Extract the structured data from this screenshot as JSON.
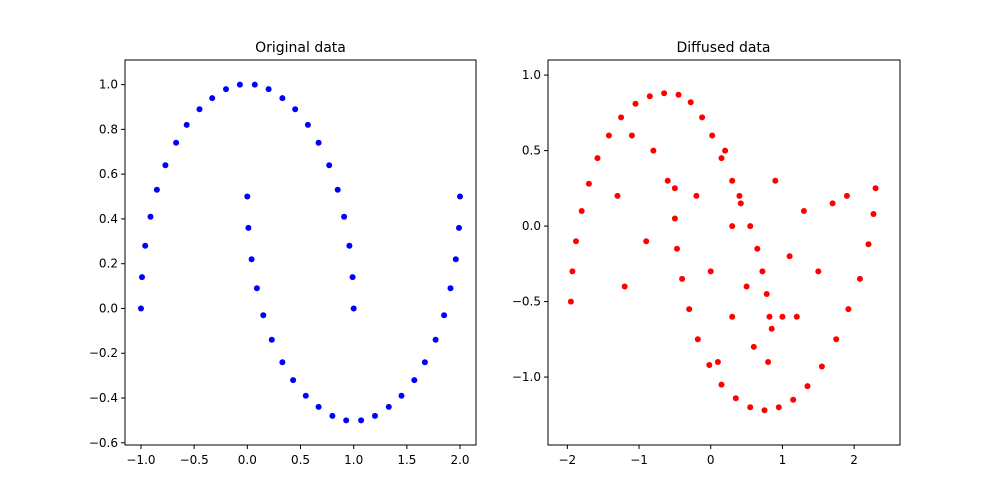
{
  "chart_data": [
    {
      "type": "scatter",
      "title": "Original data",
      "xlabel": "",
      "ylabel": "",
      "xlim": [
        -1.15,
        2.15
      ],
      "ylim": [
        -0.61,
        1.11
      ],
      "xticks": [
        -1.0,
        -0.5,
        0.0,
        0.5,
        1.0,
        1.5,
        2.0
      ],
      "xtick_labels": [
        "−1.0",
        "−0.5",
        "0.0",
        "0.5",
        "1.0",
        "1.5",
        "2.0"
      ],
      "yticks": [
        -0.6,
        -0.4,
        -0.2,
        0.0,
        0.2,
        0.4,
        0.6,
        0.8,
        1.0
      ],
      "ytick_labels": [
        "−0.6",
        "−0.4",
        "−0.2",
        "0.0",
        "0.2",
        "0.4",
        "0.6",
        "0.8",
        "1.0"
      ],
      "grid": false,
      "color": "#0000ff",
      "series": [
        {
          "points": [
            [
              -1.0,
              0.0
            ],
            [
              -0.99,
              0.14
            ],
            [
              -0.96,
              0.28
            ],
            [
              -0.91,
              0.41
            ],
            [
              -0.85,
              0.53
            ],
            [
              -0.77,
              0.64
            ],
            [
              -0.67,
              0.74
            ],
            [
              -0.57,
              0.82
            ],
            [
              -0.45,
              0.89
            ],
            [
              -0.33,
              0.94
            ],
            [
              -0.2,
              0.98
            ],
            [
              -0.07,
              1.0
            ],
            [
              0.07,
              1.0
            ],
            [
              0.2,
              0.98
            ],
            [
              0.33,
              0.94
            ],
            [
              0.45,
              0.89
            ],
            [
              0.57,
              0.82
            ],
            [
              0.67,
              0.74
            ],
            [
              0.77,
              0.64
            ],
            [
              0.85,
              0.53
            ],
            [
              0.91,
              0.41
            ],
            [
              0.96,
              0.28
            ],
            [
              0.99,
              0.14
            ],
            [
              1.0,
              0.0
            ]
          ]
        },
        {
          "points": [
            [
              0.0,
              0.5
            ],
            [
              0.01,
              0.36
            ],
            [
              0.04,
              0.22
            ],
            [
              0.09,
              0.09
            ],
            [
              0.15,
              -0.03
            ],
            [
              0.23,
              -0.14
            ],
            [
              0.33,
              -0.24
            ],
            [
              0.43,
              -0.32
            ],
            [
              0.55,
              -0.39
            ],
            [
              0.67,
              -0.44
            ],
            [
              0.8,
              -0.48
            ],
            [
              0.93,
              -0.5
            ],
            [
              1.07,
              -0.5
            ],
            [
              1.2,
              -0.48
            ],
            [
              1.33,
              -0.44
            ],
            [
              1.45,
              -0.39
            ],
            [
              1.57,
              -0.32
            ],
            [
              1.67,
              -0.24
            ],
            [
              1.77,
              -0.14
            ],
            [
              1.85,
              -0.03
            ],
            [
              1.91,
              0.09
            ],
            [
              1.96,
              0.22
            ],
            [
              1.99,
              0.36
            ],
            [
              2.0,
              0.5
            ]
          ]
        }
      ]
    },
    {
      "type": "scatter",
      "title": "Diffused data",
      "xlabel": "",
      "ylabel": "",
      "xlim": [
        -2.27,
        2.64
      ],
      "ylim": [
        -1.45,
        1.1
      ],
      "xticks": [
        -2,
        -1,
        0,
        1,
        2
      ],
      "xtick_labels": [
        "−2",
        "−1",
        "0",
        "1",
        "2"
      ],
      "yticks": [
        -1.0,
        -0.5,
        0.0,
        0.5,
        1.0
      ],
      "ytick_labels": [
        "−1.0",
        "−0.5",
        "0.0",
        "0.5",
        "1.0"
      ],
      "grid": false,
      "color": "#ff0000",
      "series": [
        {
          "points": [
            [
              -1.95,
              -0.5
            ],
            [
              -1.93,
              -0.3
            ],
            [
              -1.88,
              -0.1
            ],
            [
              -1.8,
              0.1
            ],
            [
              -1.7,
              0.28
            ],
            [
              -1.58,
              0.45
            ],
            [
              -1.42,
              0.6
            ],
            [
              -1.25,
              0.72
            ],
            [
              -1.05,
              0.81
            ],
            [
              -0.85,
              0.86
            ],
            [
              -0.65,
              0.88
            ],
            [
              -0.45,
              0.87
            ],
            [
              -0.28,
              0.82
            ],
            [
              -0.12,
              0.72
            ],
            [
              0.02,
              0.6
            ],
            [
              0.15,
              0.45
            ],
            [
              0.3,
              0.3
            ],
            [
              0.42,
              0.15
            ],
            [
              0.55,
              0.0
            ],
            [
              0.65,
              -0.15
            ],
            [
              0.72,
              -0.3
            ],
            [
              0.78,
              -0.45
            ],
            [
              0.82,
              -0.6
            ],
            [
              0.85,
              -0.68
            ]
          ]
        },
        {
          "points": [
            [
              -0.5,
              0.25
            ],
            [
              -0.5,
              0.05
            ],
            [
              -0.47,
              -0.15
            ],
            [
              -0.4,
              -0.35
            ],
            [
              -0.3,
              -0.55
            ],
            [
              -0.18,
              -0.75
            ],
            [
              -0.02,
              -0.92
            ],
            [
              0.15,
              -1.05
            ],
            [
              0.35,
              -1.14
            ],
            [
              0.55,
              -1.2
            ],
            [
              0.75,
              -1.22
            ],
            [
              0.95,
              -1.2
            ],
            [
              1.15,
              -1.15
            ],
            [
              1.35,
              -1.06
            ],
            [
              1.55,
              -0.93
            ],
            [
              1.75,
              -0.75
            ],
            [
              1.92,
              -0.55
            ],
            [
              2.08,
              -0.35
            ],
            [
              2.2,
              -0.12
            ],
            [
              2.27,
              0.08
            ],
            [
              2.3,
              0.25
            ]
          ]
        },
        {
          "points": [
            [
              -1.1,
              0.6
            ],
            [
              -0.8,
              0.5
            ],
            [
              -0.6,
              0.3
            ],
            [
              -1.3,
              0.2
            ],
            [
              -0.9,
              -0.1
            ],
            [
              -1.2,
              -0.4
            ],
            [
              0.2,
              0.5
            ],
            [
              0.3,
              0.0
            ],
            [
              0.5,
              -0.4
            ],
            [
              0.6,
              -0.8
            ],
            [
              0.0,
              -0.3
            ],
            [
              0.3,
              -0.6
            ],
            [
              1.3,
              0.1
            ],
            [
              1.5,
              -0.3
            ],
            [
              1.2,
              -0.6
            ],
            [
              1.7,
              0.15
            ],
            [
              0.9,
              0.3
            ],
            [
              1.1,
              -0.2
            ],
            [
              0.1,
              -0.9
            ],
            [
              0.4,
              0.2
            ],
            [
              -0.2,
              0.2
            ],
            [
              0.8,
              -0.9
            ],
            [
              1.0,
              -0.6
            ],
            [
              1.9,
              0.2
            ]
          ]
        }
      ]
    }
  ]
}
